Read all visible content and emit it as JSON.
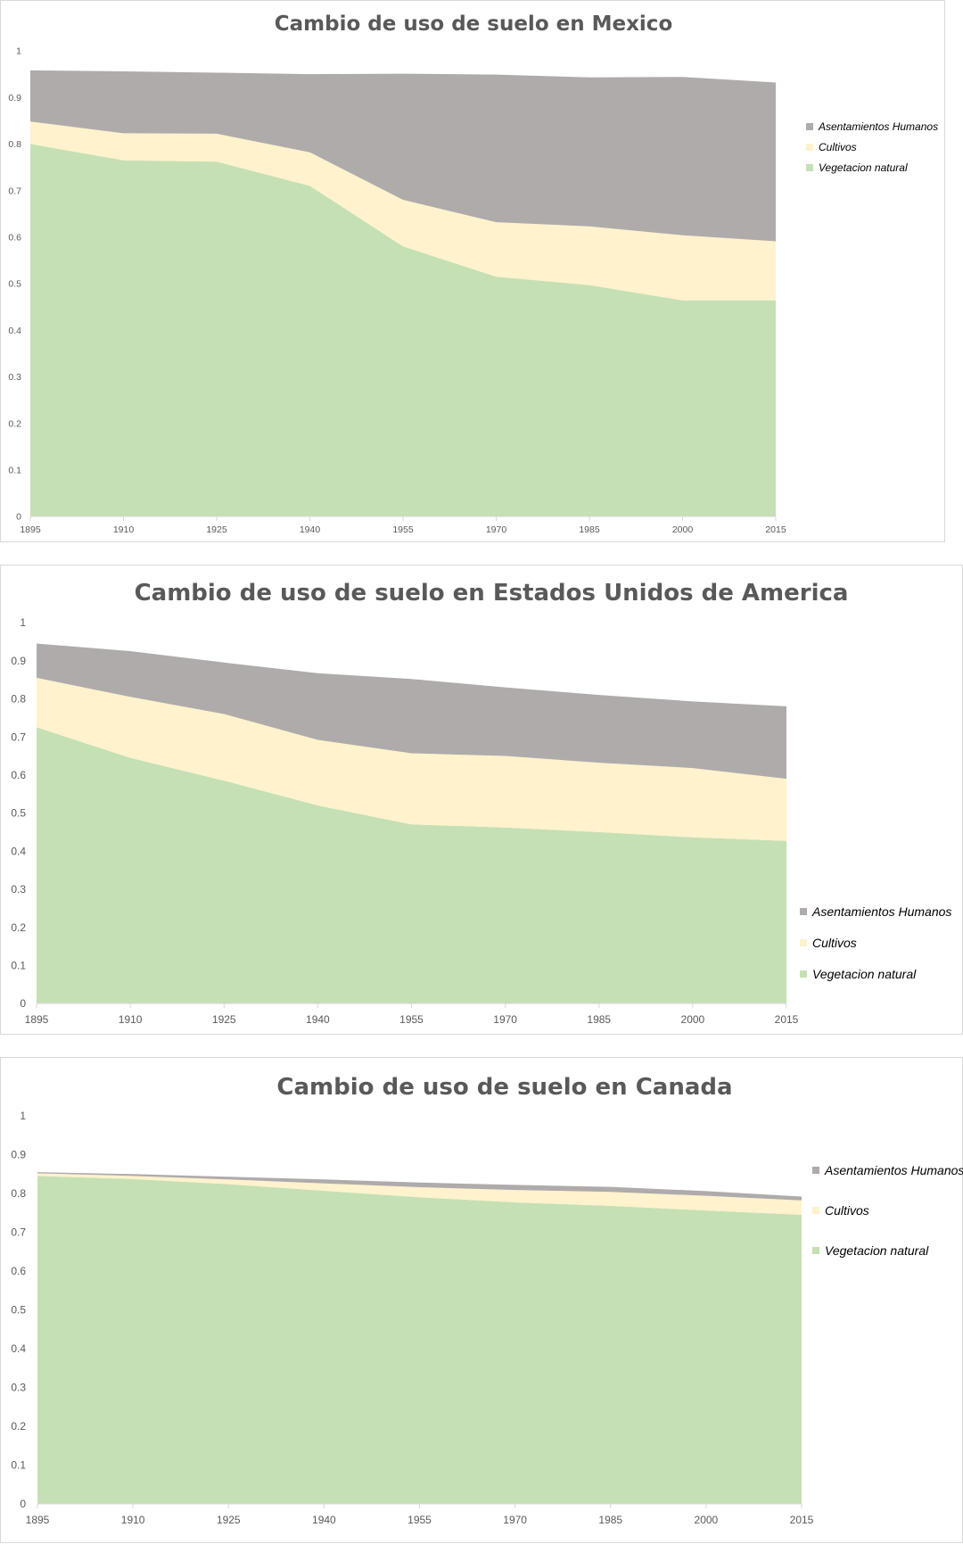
{
  "colors": {
    "Asentamientos Humanos": "#afabab",
    "Cultivos": "#fff2cc",
    "Vegetacion natural": "#c5e0b4",
    "axis": "#d9d9d9",
    "text": "#595959"
  },
  "chart_data": [
    {
      "type": "area",
      "stacked": true,
      "title": "Cambio de uso de suelo en Mexico",
      "categories": [
        "1895",
        "1910",
        "1925",
        "1940",
        "1955",
        "1970",
        "1985",
        "2000",
        "2015"
      ],
      "yticks": [
        "0",
        "0.1",
        "0.2",
        "0.3",
        "0.4",
        "0.5",
        "0.6",
        "0.7",
        "0.8",
        "0.9",
        "1"
      ],
      "ylim": [
        0,
        1
      ],
      "grid": false,
      "legend_position": "right",
      "legend": [
        "Asentamientos Humanos",
        "Cultivos",
        "Vegetacion natural"
      ],
      "series": [
        {
          "name": "Vegetacion natural",
          "values": [
            0.8,
            0.765,
            0.762,
            0.71,
            0.58,
            0.515,
            0.497,
            0.464,
            0.464
          ]
        },
        {
          "name": "Cultivos",
          "values": [
            0.048,
            0.058,
            0.06,
            0.072,
            0.1,
            0.117,
            0.126,
            0.14,
            0.127
          ]
        },
        {
          "name": "Asentamientos Humanos",
          "values": [
            0.11,
            0.133,
            0.131,
            0.168,
            0.271,
            0.317,
            0.32,
            0.34,
            0.341
          ]
        }
      ]
    },
    {
      "type": "area",
      "stacked": true,
      "title": "Cambio de uso de suelo en Estados Unidos de America",
      "categories": [
        "1895",
        "1910",
        "1925",
        "1940",
        "1955",
        "1970",
        "1985",
        "2000",
        "2015"
      ],
      "yticks": [
        "0",
        "0.1",
        "0.2",
        "0.3",
        "0.4",
        "0.5",
        "0.6",
        "0.7",
        "0.8",
        "0.9",
        "1"
      ],
      "ylim": [
        0,
        1
      ],
      "grid": false,
      "legend_position": "right",
      "legend": [
        "Asentamientos Humanos",
        "Cultivos",
        "Vegetacion natural"
      ],
      "series": [
        {
          "name": "Vegetacion natural",
          "values": [
            0.725,
            0.645,
            0.585,
            0.52,
            0.47,
            0.462,
            0.45,
            0.436,
            0.427
          ]
        },
        {
          "name": "Cultivos",
          "values": [
            0.13,
            0.16,
            0.175,
            0.172,
            0.187,
            0.188,
            0.182,
            0.182,
            0.163
          ]
        },
        {
          "name": "Asentamientos Humanos",
          "values": [
            0.09,
            0.12,
            0.135,
            0.175,
            0.195,
            0.18,
            0.178,
            0.175,
            0.19
          ]
        }
      ]
    },
    {
      "type": "area",
      "stacked": true,
      "title": "Cambio de uso de suelo en Canada",
      "categories": [
        "1895",
        "1910",
        "1925",
        "1940",
        "1955",
        "1970",
        "1985",
        "2000",
        "2015"
      ],
      "yticks": [
        "0",
        "0.1",
        "0.2",
        "0.3",
        "0.4",
        "0.5",
        "0.6",
        "0.7",
        "0.8",
        "0.9",
        "1"
      ],
      "ylim": [
        0,
        1
      ],
      "grid": false,
      "legend_position": "right",
      "legend": [
        "Asentamientos Humanos",
        "Cultivos",
        "Vegetacion natural"
      ],
      "series": [
        {
          "name": "Vegetacion natural",
          "values": [
            0.845,
            0.837,
            0.824,
            0.807,
            0.79,
            0.777,
            0.768,
            0.756,
            0.745
          ]
        },
        {
          "name": "Cultivos",
          "values": [
            0.007,
            0.008,
            0.012,
            0.019,
            0.026,
            0.032,
            0.036,
            0.038,
            0.037
          ]
        },
        {
          "name": "Asentamientos Humanos",
          "values": [
            0.003,
            0.005,
            0.007,
            0.01,
            0.012,
            0.013,
            0.013,
            0.012,
            0.01
          ]
        }
      ]
    }
  ]
}
